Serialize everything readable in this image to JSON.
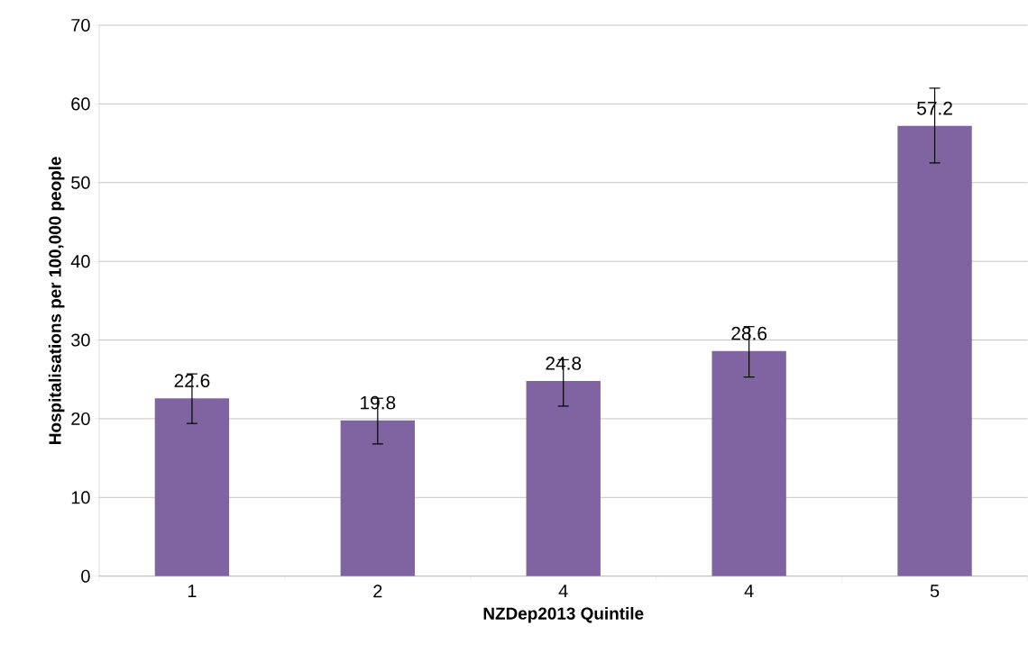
{
  "chart_data": {
    "type": "bar",
    "xlabel": "NZDep2013 Quintile",
    "ylabel": "Hospitalisations per 100,000 people",
    "categories": [
      "1",
      "2",
      "4",
      "4",
      "5"
    ],
    "values": [
      22.6,
      19.8,
      24.8,
      28.6,
      57.2
    ],
    "errors": [
      [
        19.4,
        25.7
      ],
      [
        16.8,
        22.6
      ],
      [
        21.6,
        27.5
      ],
      [
        25.3,
        31.7
      ],
      [
        52.5,
        62.0
      ]
    ],
    "color": "#8064a2",
    "ylim": [
      0,
      70
    ],
    "yticks": [
      0,
      10,
      20,
      30,
      40,
      50,
      60,
      70
    ],
    "grid": "y",
    "data_labels": true
  }
}
